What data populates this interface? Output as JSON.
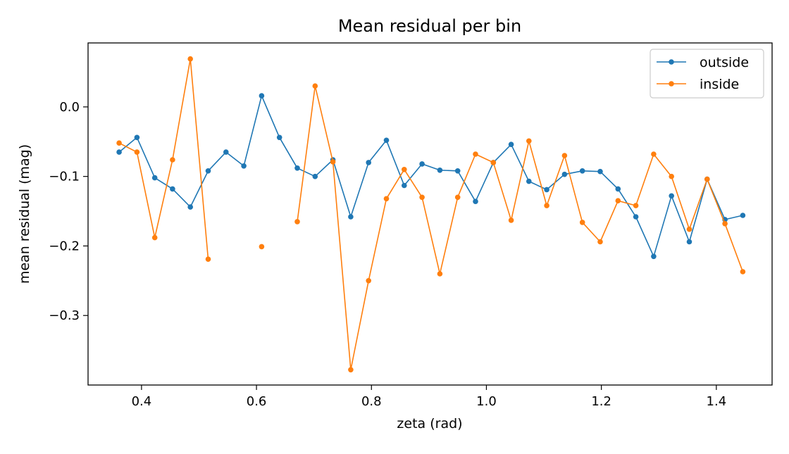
{
  "chart_data": {
    "type": "line",
    "title": "Mean residual per bin",
    "xlabel": "zeta (rad)",
    "ylabel": "mean residual (mag)",
    "xlim": [
      0.307,
      1.497
    ],
    "ylim": [
      -0.4,
      0.092
    ],
    "xticks": [
      {
        "value": 0.4,
        "label": "0.4"
      },
      {
        "value": 0.6,
        "label": "0.6"
      },
      {
        "value": 0.8,
        "label": "0.8"
      },
      {
        "value": 1.0,
        "label": "1.0"
      },
      {
        "value": 1.2,
        "label": "1.2"
      },
      {
        "value": 1.4,
        "label": "1.4"
      }
    ],
    "yticks": [
      {
        "value": 0.0,
        "label": "0.0"
      },
      {
        "value": -0.1,
        "label": "−0.1"
      },
      {
        "value": -0.2,
        "label": "−0.2"
      },
      {
        "value": -0.3,
        "label": "−0.3"
      }
    ],
    "grid": false,
    "legend_position": "top-right",
    "x": [
      0.361,
      0.392,
      0.423,
      0.454,
      0.485,
      0.516,
      0.547,
      0.578,
      0.609,
      0.64,
      0.671,
      0.702,
      0.733,
      0.764,
      0.795,
      0.826,
      0.857,
      0.888,
      0.919,
      0.95,
      0.981,
      1.012,
      1.043,
      1.074,
      1.105,
      1.136,
      1.167,
      1.198,
      1.229,
      1.26,
      1.291,
      1.322,
      1.353,
      1.384,
      1.415,
      1.446
    ],
    "series": [
      {
        "name": "outside",
        "color": "#1f77b4",
        "values": [
          -0.065,
          -0.044,
          -0.102,
          -0.118,
          -0.144,
          -0.092,
          -0.065,
          -0.085,
          0.016,
          -0.044,
          -0.088,
          -0.1,
          -0.076,
          -0.158,
          -0.08,
          -0.048,
          -0.113,
          -0.082,
          -0.091,
          -0.092,
          -0.136,
          -0.08,
          -0.054,
          -0.107,
          -0.119,
          -0.097,
          -0.092,
          -0.093,
          -0.118,
          -0.158,
          -0.215,
          -0.128,
          -0.194,
          -0.104,
          -0.162,
          -0.156
        ]
      },
      {
        "name": "inside",
        "color": "#ff7f0e",
        "values": [
          -0.052,
          -0.065,
          -0.188,
          -0.076,
          0.069,
          -0.219,
          null,
          null,
          -0.201,
          null,
          -0.165,
          0.03,
          -0.079,
          -0.378,
          -0.25,
          -0.132,
          -0.09,
          -0.13,
          -0.24,
          -0.13,
          -0.068,
          -0.08,
          -0.163,
          -0.049,
          -0.142,
          -0.07,
          -0.166,
          -0.194,
          -0.135,
          -0.142,
          -0.068,
          -0.1,
          -0.176,
          -0.104,
          -0.168,
          -0.237
        ]
      }
    ]
  }
}
